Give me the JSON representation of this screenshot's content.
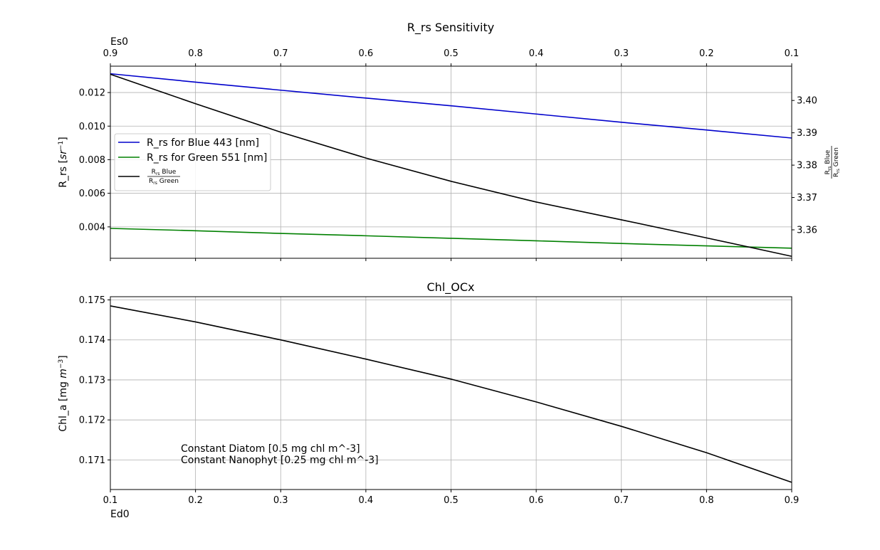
{
  "chart_data": [
    {
      "type": "line",
      "title": "R_rs Sensitivity",
      "top_axis": {
        "label": "Es0",
        "range": [
          0.9,
          0.1
        ],
        "ticks": [
          0.9,
          0.8,
          0.7,
          0.6,
          0.5,
          0.4,
          0.3,
          0.2,
          0.1
        ]
      },
      "x": [
        0.1,
        0.2,
        0.3,
        0.4,
        0.5,
        0.6,
        0.7,
        0.8,
        0.9
      ],
      "xlim": [
        0.1,
        0.9
      ],
      "left_axis": {
        "label_main": "R_rs [",
        "label_italic": "sr",
        "label_sup": "−1",
        "label_end": "]",
        "ylim": [
          0.00213,
          0.01357
        ],
        "ticks": [
          "0.004",
          "0.006",
          "0.008",
          "0.010",
          "0.012"
        ]
      },
      "right_axis": {
        "label_num": "R",
        "label_num_sub": "rs",
        "label_num_text": " Blue",
        "label_den": "R",
        "label_den_sub": "rs",
        "label_den_text": " Green",
        "ylim": [
          3.3512,
          3.4106
        ],
        "ticks": [
          "3.36",
          "3.37",
          "3.38",
          "3.39",
          "3.40"
        ]
      },
      "grid": true,
      "legend_position": "center-left",
      "series": [
        {
          "name": "R_rs for Blue 443 [nm]",
          "axis": "left",
          "color": "#0000cc",
          "values": [
            0.01312,
            0.01262,
            0.01214,
            0.01167,
            0.01121,
            0.01072,
            0.01023,
            0.00977,
            0.00929
          ]
        },
        {
          "name": "R_rs for Green 551 [nm]",
          "axis": "left",
          "color": "#008000",
          "values": [
            0.00391,
            0.00377,
            0.00361,
            0.00347,
            0.00332,
            0.00317,
            0.00301,
            0.00287,
            0.00273
          ]
        },
        {
          "name_num": "R",
          "name_num_sub": "rs",
          "name_num_text": " Blue",
          "name_den": "R",
          "name_den_sub": "rs",
          "name_den_text": " Green",
          "axis": "right",
          "color": "#000000",
          "values": [
            3.4081,
            3.399,
            3.3902,
            3.3822,
            3.375,
            3.3686,
            3.3631,
            3.3575,
            3.3518
          ]
        }
      ]
    },
    {
      "type": "line",
      "title": "Chl_OCx",
      "xlabel": "Ed0",
      "x": [
        0.1,
        0.2,
        0.3,
        0.4,
        0.5,
        0.6,
        0.7,
        0.8,
        0.9
      ],
      "xlim": [
        0.1,
        0.9
      ],
      "x_ticks": [
        "0.1",
        "0.2",
        "0.3",
        "0.4",
        "0.5",
        "0.6",
        "0.7",
        "0.8",
        "0.9"
      ],
      "ylabel_main": "Chl_a [mg ",
      "ylabel_italic": "m",
      "ylabel_sup": "−3",
      "ylabel_end": "]",
      "ylim": [
        0.17026,
        0.17508
      ],
      "y_ticks": [
        "0.171",
        "0.172",
        "0.173",
        "0.174",
        "0.175"
      ],
      "grid": true,
      "series": [
        {
          "color": "#000000",
          "values": [
            0.17485,
            0.17445,
            0.174,
            0.17352,
            0.17302,
            0.17245,
            0.17184,
            0.17118,
            0.17044
          ]
        }
      ],
      "annotations": [
        "Constant Diatom [0.5 mg chl m^-3]",
        "Constant Nanophyt [0.25 mg chl m^-3]"
      ]
    }
  ]
}
